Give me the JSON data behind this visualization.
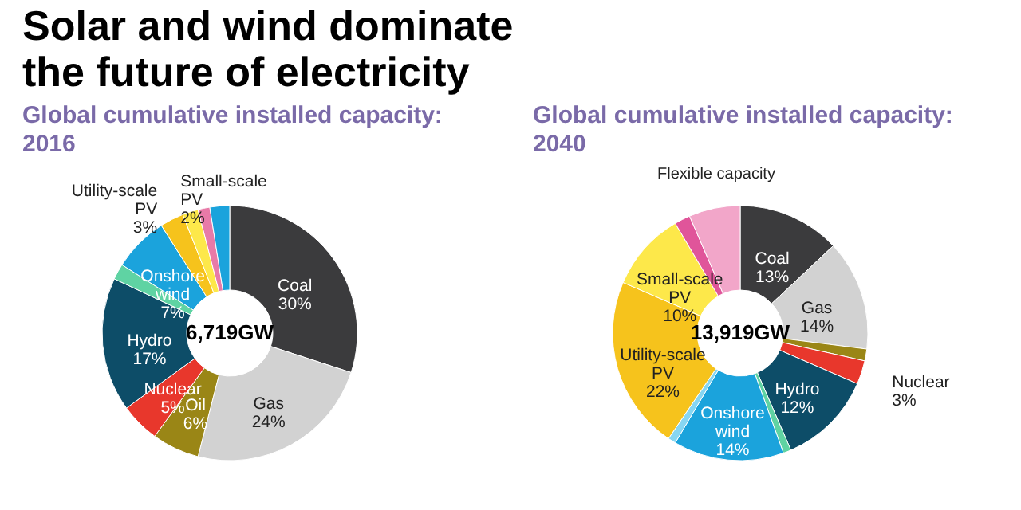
{
  "chart_data": [
    {
      "type": "donut",
      "title": "Solar and wind dominate the future of electricity",
      "subtitle": "Global cumulative installed capacity: 2016",
      "categories": [
        "Coal",
        "Gas",
        "Oil",
        "Nuclear",
        "Hydro",
        null,
        "Onshore wind",
        "Utility-scale PV",
        "Small-scale PV",
        null,
        null
      ],
      "values": [
        30,
        24,
        6,
        5,
        17,
        2,
        7,
        3,
        2,
        1.5,
        2.5
      ],
      "colors": [
        "#3b3b3d",
        "#d2d2d2",
        "#9a8616",
        "#e8372c",
        "#0d4d68",
        "#5fd3a3",
        "#1ba3dc",
        "#f6c31c",
        "#fde84a",
        "#e87aa8",
        "#1ba3dc"
      ],
      "value_labels": [
        "30%",
        "24%",
        "6%",
        "5%",
        "17%",
        null,
        "7%",
        "3%",
        "2%",
        null,
        null
      ],
      "annotations": [
        "6,719GW"
      ]
    },
    {
      "type": "donut",
      "subtitle": "Global cumulative installed capacity: 2040",
      "categories": [
        "Coal",
        "Gas",
        null,
        "Nuclear",
        "Hydro",
        null,
        "Onshore wind",
        null,
        "Utility-scale PV",
        "Small-scale PV",
        null,
        null
      ],
      "values": [
        13,
        14,
        1.5,
        3,
        12,
        1,
        14,
        1,
        22,
        10,
        2,
        6.5
      ],
      "colors": [
        "#3b3b3d",
        "#d2d2d2",
        "#9a8616",
        "#e8372c",
        "#0d4d68",
        "#5fd3a3",
        "#1ba3dc",
        "#86d6f2",
        "#f6c31c",
        "#fde84a",
        "#e0559a",
        "#f2a6c9"
      ],
      "value_labels": [
        "13%",
        "14%",
        null,
        "3%",
        "12%",
        null,
        "14%",
        null,
        "22%",
        "10%",
        null,
        null
      ],
      "annotations": [
        "13,919GW",
        "Flexible capacity"
      ]
    }
  ]
}
